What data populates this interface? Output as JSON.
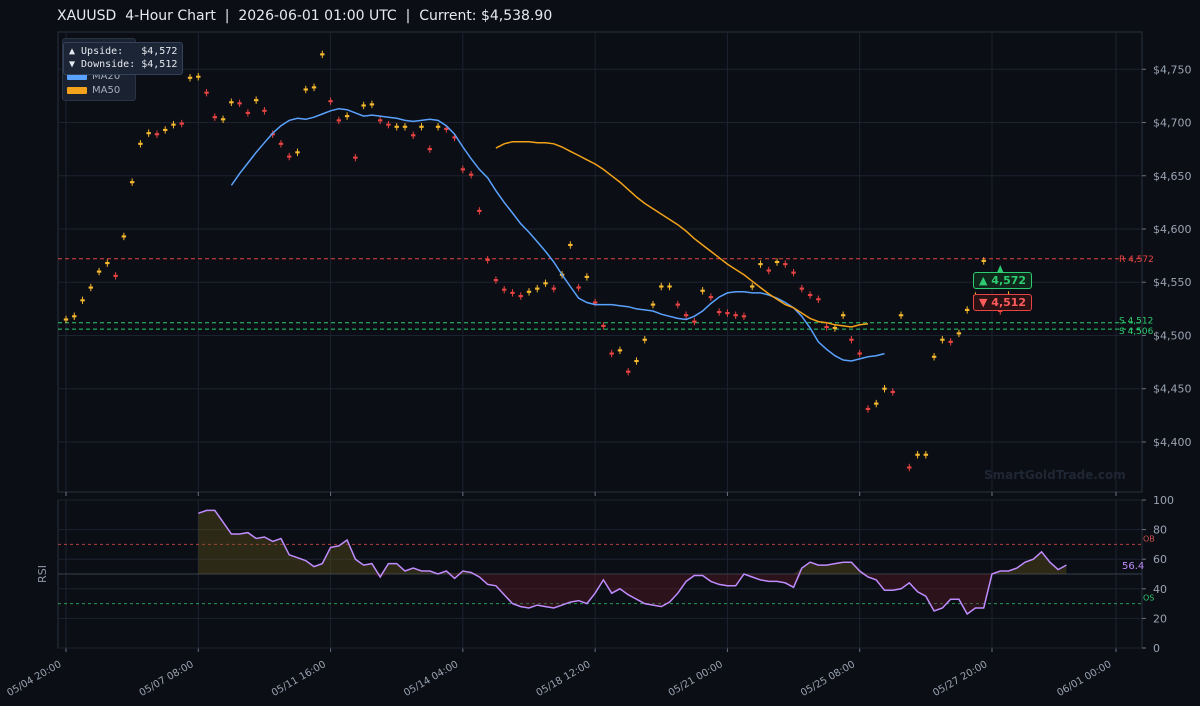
{
  "title": "XAUUSD  4-Hour Chart  |  2026-06-01 01:00 UTC  |  Current: $4,538.90",
  "legend": {
    "ma20_label": "MA20",
    "ma50_label": "MA50",
    "ma20_color": "#5aa2ff",
    "ma50_color": "#f2a21b"
  },
  "targets": {
    "upside_label": "▲ Upside:   $4,572",
    "downside_label": "▼ Downside: $4,512"
  },
  "tags": {
    "up": "▲ 4,572",
    "down": "▼ 4,512"
  },
  "watermark": "SmartGoldTrade.com",
  "colors": {
    "up": "#f5b82e",
    "down": "#e84343",
    "rsi_line": "#c08cff",
    "resistance": "#e84343",
    "support": "#2ecc71",
    "background": "#0b0e14",
    "grid": "#1c2230"
  },
  "chart_data": [
    {
      "type": "candlestick",
      "series_name": "XAUUSD",
      "ylim": [
        4353,
        4785
      ],
      "yticks": [
        4400,
        4450,
        4500,
        4550,
        4600,
        4650,
        4700,
        4750
      ],
      "ytick_labels": [
        "$4,400",
        "$4,450",
        "$4,500",
        "$4,550",
        "$4,600",
        "$4,650",
        "$4,700",
        "$4,750"
      ],
      "xtick_labels": [
        "05/04 20:00",
        "05/07 08:00",
        "05/11 16:00",
        "05/14 04:00",
        "05/18 12:00",
        "05/21 00:00",
        "05/25 08:00",
        "05/27 20:00",
        "06/01 00:00"
      ],
      "xtick_index": [
        0,
        16,
        32,
        48,
        64,
        80,
        96,
        112,
        127
      ],
      "closes": [
        4516,
        4519,
        4534,
        4546,
        4561,
        4569,
        4555,
        4594,
        4645,
        4681,
        4691,
        4688,
        4694,
        4699,
        4698,
        4743,
        4744,
        4727,
        4704,
        4704,
        4720,
        4717,
        4708,
        4722,
        4710,
        4688,
        4679,
        4667,
        4673,
        4732,
        4734,
        4765,
        4719,
        4701,
        4707,
        4666,
        4717,
        4718,
        4701,
        4697,
        4697,
        4697,
        4687,
        4697,
        4674,
        4697,
        4693,
        4685,
        4655,
        4650,
        4616,
        4570,
        4551,
        4542,
        4539,
        4536,
        4542,
        4545,
        4550,
        4543,
        4558,
        4586,
        4544,
        4556,
        4530,
        4508,
        4482,
        4487,
        4465,
        4477,
        4497,
        4530,
        4547,
        4547,
        4528,
        4518,
        4512,
        4543,
        4535,
        4521,
        4520,
        4518,
        4517,
        4547,
        4568,
        4560,
        4570,
        4566,
        4558,
        4543,
        4537,
        4533,
        4507,
        4508,
        4520,
        4495,
        4482,
        4430,
        4437,
        4451,
        4446,
        4520,
        4375,
        4389,
        4389,
        4481,
        4497,
        4493,
        4503,
        4525,
        4538,
        4571,
        4546,
        4522,
        4539
      ],
      "resistance": {
        "label": "R 4,572",
        "value": 4572
      },
      "support": [
        {
          "label": "S 4,512",
          "value": 4512
        },
        {
          "label": "S 4,506",
          "value": 4506
        }
      ],
      "ma20": [
        4641,
        4652,
        4662,
        4672,
        4681,
        4690,
        4697,
        4702,
        4704,
        4703,
        4705,
        4708,
        4711,
        4713,
        4712,
        4709,
        4706,
        4707,
        4706,
        4705,
        4704,
        4702,
        4701,
        4702,
        4703,
        4702,
        4697,
        4689,
        4677,
        4666,
        4656,
        4648,
        4636,
        4625,
        4615,
        4605,
        4597,
        4588,
        4579,
        4569,
        4557,
        4546,
        4535,
        4531,
        4529,
        4529,
        4529,
        4528,
        4527,
        4525,
        4524,
        4523,
        4520,
        4518,
        4516,
        4515,
        4518,
        4523,
        4530,
        4536,
        4540,
        4541,
        4541,
        4540,
        4540,
        4538,
        4535,
        4531,
        4526,
        4518,
        4507,
        4494,
        4487,
        4481,
        4477,
        4476,
        4478,
        4480,
        4481,
        4483
      ],
      "ma20_start_index": 48,
      "ma50": [
        4676,
        4680,
        4682,
        4682,
        4682,
        4681,
        4681,
        4680,
        4677,
        4673,
        4669,
        4665,
        4661,
        4656,
        4650,
        4644,
        4637,
        4630,
        4624,
        4619,
        4614,
        4609,
        4604,
        4598,
        4591,
        4585,
        4579,
        4573,
        4567,
        4562,
        4557,
        4551,
        4545,
        4539,
        4534,
        4529,
        4526,
        4521,
        4516,
        4513,
        4512,
        4510,
        4509,
        4508,
        4510,
        4511
      ],
      "ma50_start_index": 82
    },
    {
      "type": "line",
      "series_name": "RSI",
      "ylabel": "RSI",
      "ylim": [
        0,
        100
      ],
      "yticks": [
        0,
        20,
        40,
        60,
        80,
        100
      ],
      "levels": {
        "ob": 70,
        "os": 30,
        "mid": 50,
        "ob_label": "OB",
        "os_label": "OS"
      },
      "last_label": "56.4",
      "values": [
        91,
        93,
        93,
        85,
        77,
        77,
        78,
        74,
        75,
        72,
        74,
        63,
        61,
        59,
        55,
        57,
        68,
        69,
        73,
        60,
        56,
        57,
        48,
        57,
        57,
        52,
        54,
        52,
        52,
        50,
        52,
        47,
        52,
        51,
        48,
        43,
        42,
        36,
        30,
        28,
        27,
        29,
        28,
        27,
        29,
        31,
        32,
        30,
        37,
        46,
        37,
        40,
        36,
        33,
        30,
        29,
        28,
        31,
        37,
        45,
        49,
        49,
        45,
        43,
        42,
        42,
        50,
        48,
        46,
        45,
        45,
        44,
        41,
        54,
        58,
        56,
        56,
        57,
        58,
        58,
        52,
        48,
        46,
        39,
        39,
        40,
        44,
        38,
        35,
        25,
        27,
        33,
        33,
        23,
        27,
        27,
        50,
        52,
        52,
        54,
        58,
        60,
        65,
        58,
        53,
        56
      ]
    }
  ]
}
